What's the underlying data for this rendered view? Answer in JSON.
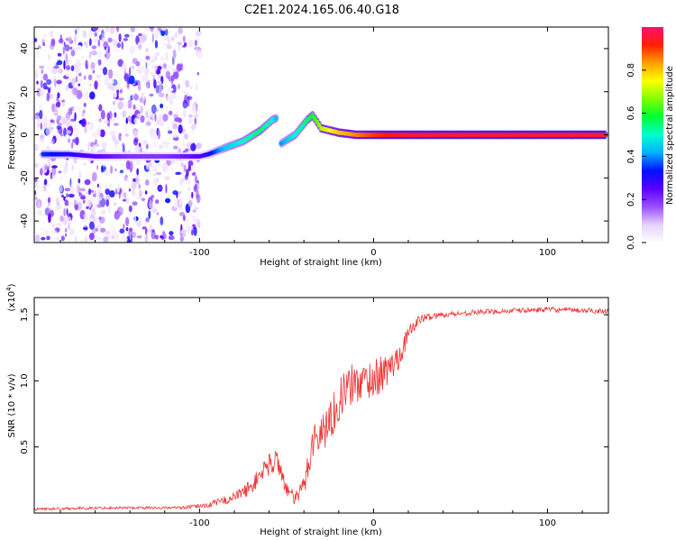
{
  "title": "C2E1.2024.165.06.40.G18",
  "chart_data": [
    {
      "type": "heatmap",
      "name": "spectrogram",
      "xlabel": "Height of straight line (km)",
      "ylabel": "Frequency (Hz)",
      "xlim": [
        -195,
        135
      ],
      "ylim": [
        -50,
        50
      ],
      "xticks": [
        -100,
        0,
        100
      ],
      "yticks": [
        -40,
        -20,
        0,
        20,
        40
      ],
      "colorbar": {
        "label": "Normalized spectral amplitude",
        "range": [
          0,
          1
        ],
        "ticks": [
          0.0,
          0.2,
          0.4,
          0.6,
          0.8
        ],
        "colormap": [
          "#ffffff",
          "#e6d0ff",
          "#9b4dff",
          "#5a00ff",
          "#0010ff",
          "#00b0ff",
          "#00ffd0",
          "#00ff30",
          "#80ff00",
          "#ffff00",
          "#ffa000",
          "#ff2000",
          "#ff1070"
        ]
      },
      "ridge": [
        {
          "x": -190,
          "y": -9,
          "amp": 0.35
        },
        {
          "x": -175,
          "y": -9,
          "amp": 0.3
        },
        {
          "x": -160,
          "y": -10,
          "amp": 0.25
        },
        {
          "x": -140,
          "y": -10,
          "amp": 0.2
        },
        {
          "x": -120,
          "y": -10,
          "amp": 0.2
        },
        {
          "x": -100,
          "y": -10,
          "amp": 0.25
        },
        {
          "x": -95,
          "y": -9,
          "amp": 0.3
        },
        {
          "x": -85,
          "y": -6,
          "amp": 0.45
        },
        {
          "x": -75,
          "y": -3,
          "amp": 0.5
        },
        {
          "x": -65,
          "y": 2,
          "amp": 0.55
        },
        {
          "x": -58,
          "y": 7,
          "amp": 0.5
        },
        {
          "x": -55,
          "y": 8,
          "amp": 0.4
        },
        {
          "x": -53,
          "y": -4,
          "amp": 0.4
        },
        {
          "x": -45,
          "y": 0,
          "amp": 0.5
        },
        {
          "x": -38,
          "y": 7,
          "amp": 0.55
        },
        {
          "x": -35,
          "y": 9,
          "amp": 0.6
        },
        {
          "x": -30,
          "y": 3,
          "amp": 0.7
        },
        {
          "x": -20,
          "y": 1,
          "amp": 0.8
        },
        {
          "x": -10,
          "y": 0,
          "amp": 0.85
        },
        {
          "x": 0,
          "y": 0,
          "amp": 0.9
        },
        {
          "x": 20,
          "y": 0,
          "amp": 0.95
        },
        {
          "x": 60,
          "y": 0,
          "amp": 0.95
        },
        {
          "x": 100,
          "y": 0,
          "amp": 0.95
        },
        {
          "x": 133,
          "y": 0,
          "amp": 0.95
        }
      ]
    },
    {
      "type": "line",
      "name": "snr",
      "xlabel": "Height of straight line (km)",
      "ylabel": "SNR (10 * v/v)",
      "multiplier_label": "(x10",
      "multiplier_exp": "4",
      "multiplier_close": ")",
      "color": "#ee3333",
      "xlim": [
        -195,
        135
      ],
      "ylim": [
        0,
        1.63
      ],
      "xticks": [
        -100,
        0,
        100
      ],
      "yticks": [
        0.5,
        1.0,
        1.5
      ],
      "ytick_labels": [
        "0.5",
        "1.0",
        "1.5"
      ],
      "x": [
        -195,
        -150,
        -110,
        -95,
        -80,
        -70,
        -62,
        -55,
        -50,
        -45,
        -40,
        -35,
        -30,
        -25,
        -20,
        -15,
        -10,
        -5,
        0,
        5,
        10,
        15,
        20,
        25,
        30,
        40,
        60,
        80,
        100,
        120,
        135
      ],
      "y": [
        0.03,
        0.04,
        0.04,
        0.06,
        0.12,
        0.2,
        0.35,
        0.4,
        0.18,
        0.1,
        0.2,
        0.55,
        0.6,
        0.7,
        0.85,
        0.95,
        0.98,
        1.0,
        1.02,
        1.05,
        1.1,
        1.2,
        1.35,
        1.45,
        1.48,
        1.5,
        1.52,
        1.53,
        1.54,
        1.53,
        1.53
      ],
      "noise": [
        0.01,
        0.01,
        0.01,
        0.02,
        0.04,
        0.06,
        0.08,
        0.1,
        0.06,
        0.05,
        0.1,
        0.14,
        0.15,
        0.16,
        0.16,
        0.16,
        0.16,
        0.15,
        0.15,
        0.14,
        0.12,
        0.1,
        0.06,
        0.04,
        0.03,
        0.02,
        0.02,
        0.02,
        0.02,
        0.02,
        0.02
      ]
    }
  ]
}
